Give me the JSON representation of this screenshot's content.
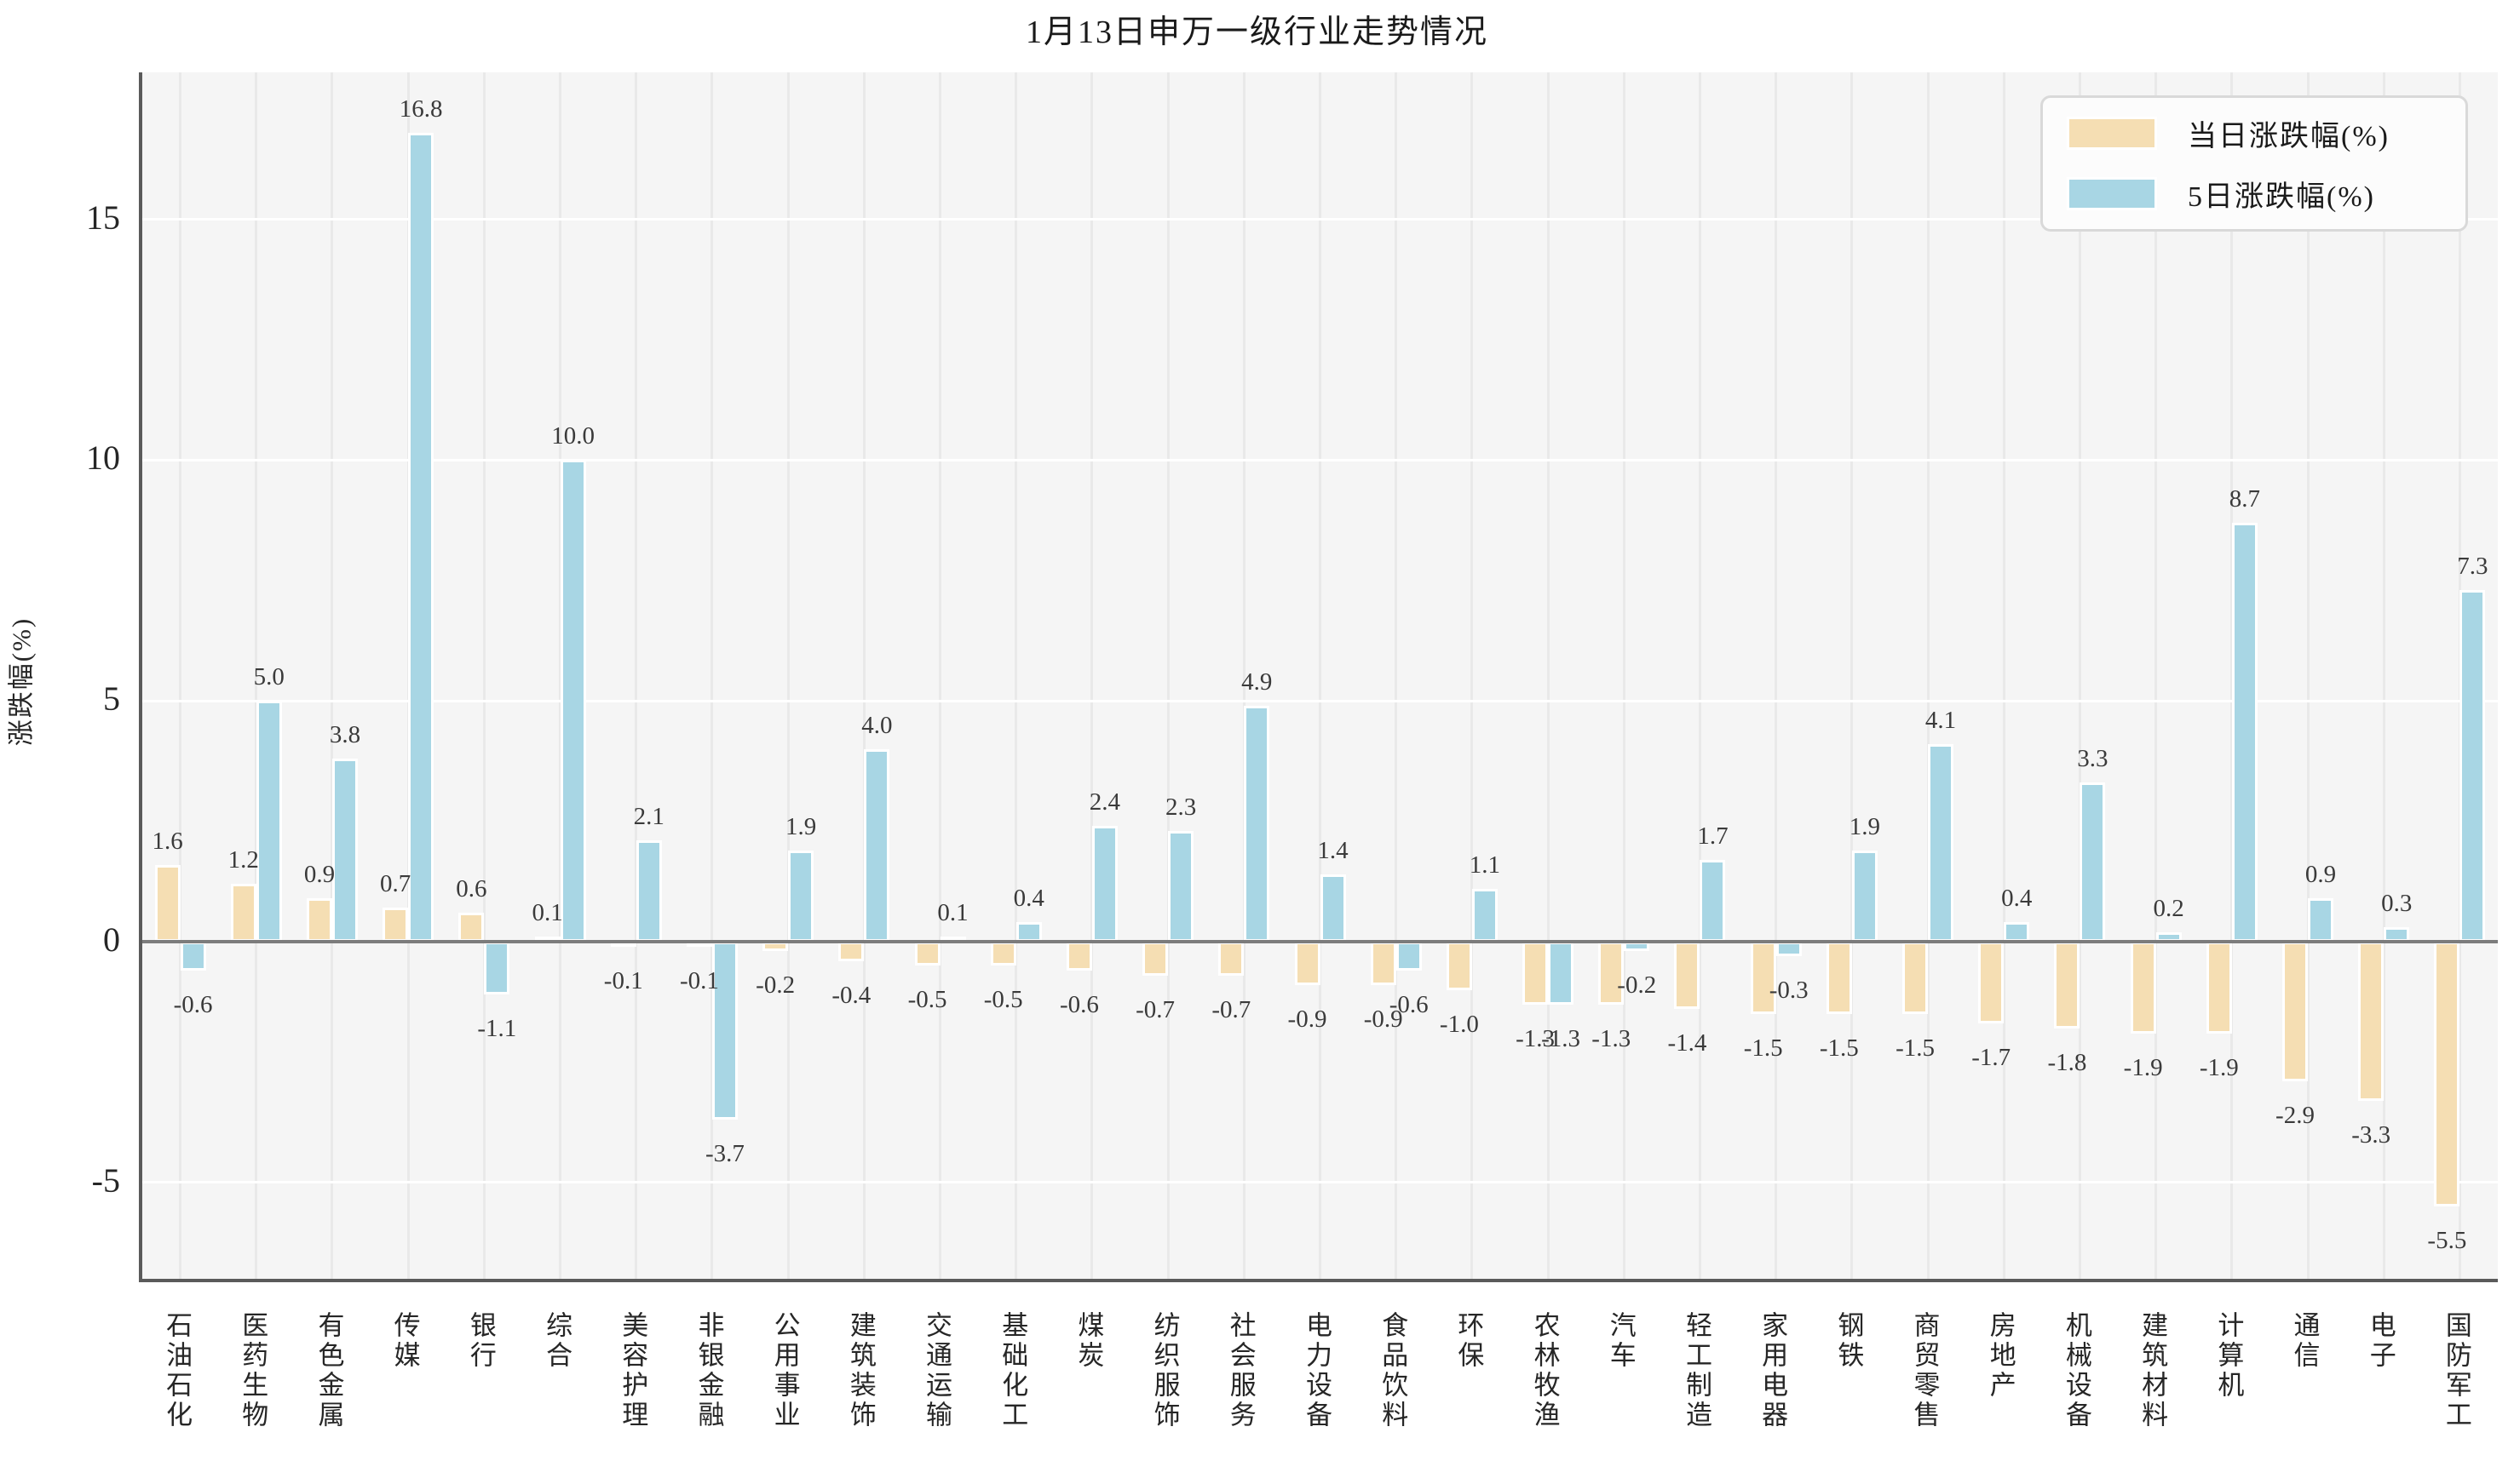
{
  "title": "1月13日申万一级行业走势情况",
  "colors": {
    "daily_bar": "#f5deb3",
    "fiveday_bar": "#a8d6e4",
    "plot_background": "#f5f5f5",
    "grid_horizontal": "#ffffff",
    "grid_vertical": "#e9e9e9",
    "zero_line": "#7c7c7c",
    "axis_spine": "#5a5a5a",
    "text": "#262626"
  },
  "chart_data": {
    "type": "bar",
    "title": "1月13日申万一级行业走势情况",
    "xlabel": "",
    "ylabel": "涨跌幅(%)",
    "yticks": [
      -5,
      0,
      5,
      10,
      15
    ],
    "ylim": [
      -7,
      18.05
    ],
    "grid": true,
    "legend_position": "upper right",
    "value_labels": true,
    "categories": [
      "石油石化",
      "医药生物",
      "有色金属",
      "传媒",
      "银行",
      "综合",
      "美容护理",
      "非银金融",
      "公用事业",
      "建筑装饰",
      "交通运输",
      "基础化工",
      "煤炭",
      "纺织服饰",
      "社会服务",
      "电力设备",
      "食品饮料",
      "环保",
      "农林牧渔",
      "汽车",
      "轻工制造",
      "家用电器",
      "钢铁",
      "商贸零售",
      "房地产",
      "机械设备",
      "建筑材料",
      "计算机",
      "通信",
      "电子",
      "国防军工"
    ],
    "series": [
      {
        "name": "当日涨跌幅(%)",
        "color": "#f5deb3",
        "values": [
          1.6,
          1.2,
          0.9,
          0.7,
          0.6,
          0.1,
          -0.1,
          -0.1,
          -0.2,
          -0.4,
          -0.5,
          -0.5,
          -0.6,
          -0.7,
          -0.7,
          -0.9,
          -0.9,
          -1.0,
          -1.3,
          -1.3,
          -1.4,
          -1.5,
          -1.5,
          -1.5,
          -1.7,
          -1.8,
          -1.9,
          -1.9,
          -2.9,
          -3.3,
          -5.5
        ]
      },
      {
        "name": "5日涨跌幅(%)",
        "color": "#a8d6e4",
        "values": [
          -0.6,
          5.0,
          3.8,
          16.8,
          -1.1,
          10.0,
          2.1,
          -3.7,
          1.9,
          4.0,
          0.1,
          0.4,
          2.4,
          2.3,
          4.9,
          1.4,
          -0.6,
          1.1,
          -1.3,
          -0.2,
          1.7,
          -0.3,
          1.9,
          4.1,
          0.4,
          3.3,
          0.2,
          8.7,
          0.9,
          0.3,
          7.3
        ]
      }
    ]
  }
}
